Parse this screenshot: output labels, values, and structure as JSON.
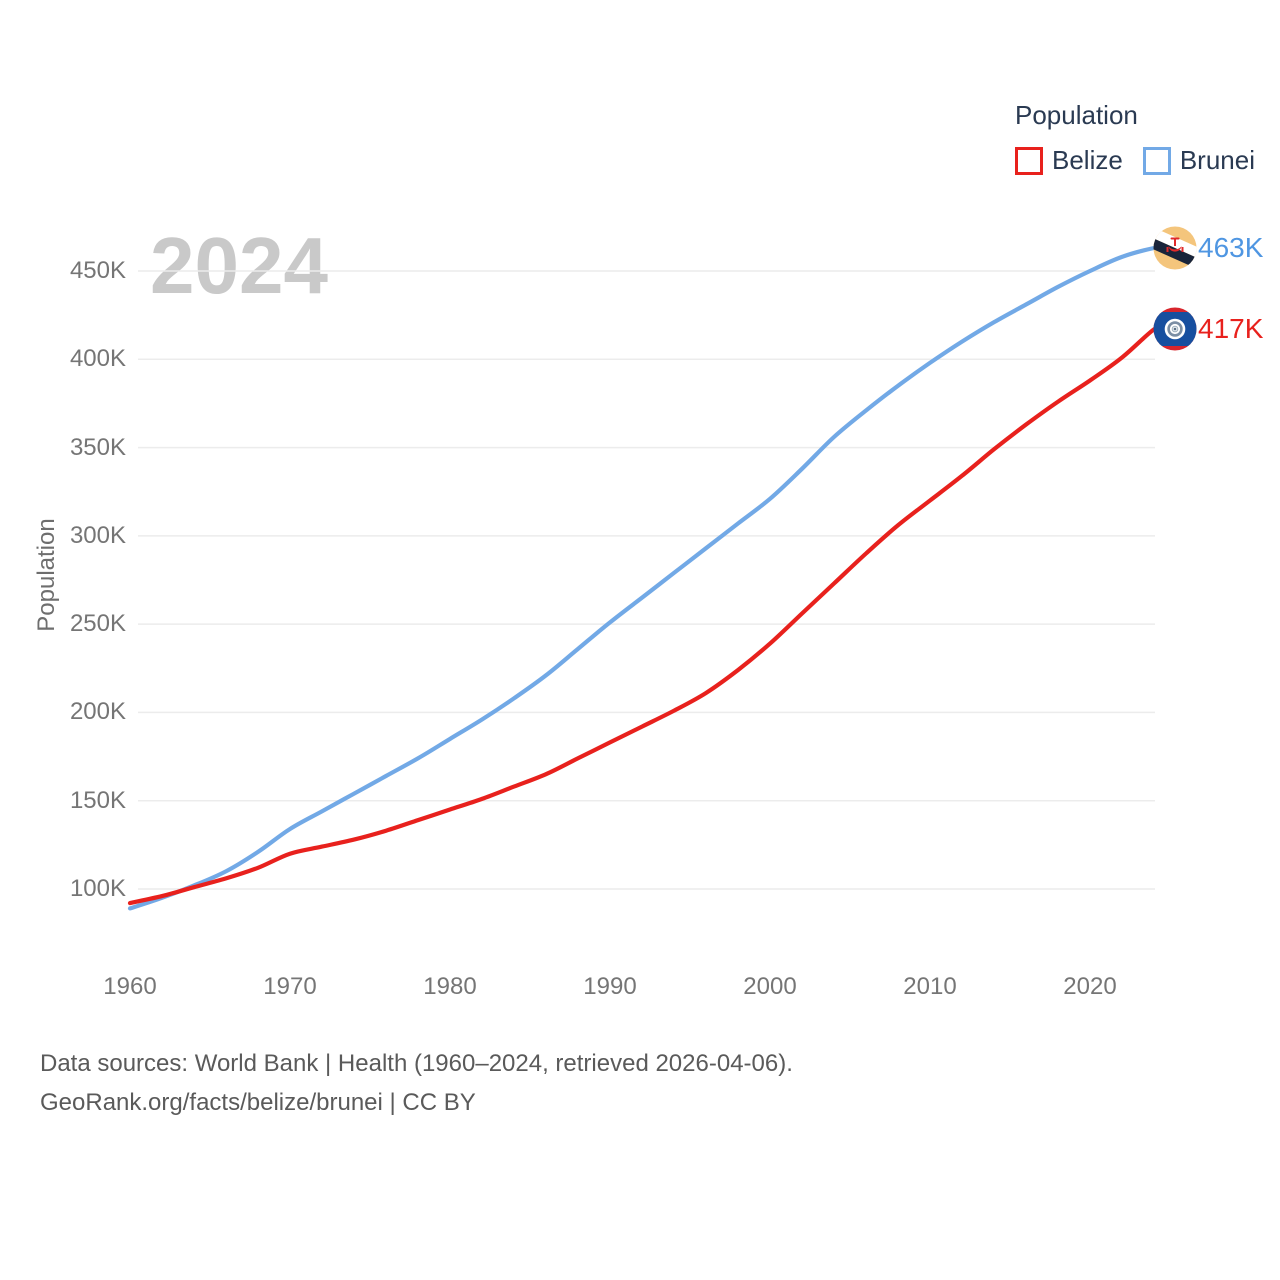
{
  "ui": {
    "legend": {
      "title": "Population",
      "items": [
        {
          "label": "Belize",
          "color": "#e8211d"
        },
        {
          "label": "Brunei",
          "color": "#72a9e6"
        }
      ]
    },
    "watermark": "2024",
    "footer": {
      "line1": "Data sources: World Bank | Health (1960–2024, retrieved 2026-04-06).",
      "line2": "GeoRank.org/facts/belize/brunei | CC BY"
    }
  },
  "chart_data": {
    "type": "line",
    "title": "Population",
    "xlabel": "",
    "ylabel": "Population",
    "units": "people (values in thousands)",
    "x": [
      1960,
      1962,
      1964,
      1966,
      1968,
      1970,
      1972,
      1974,
      1976,
      1978,
      1980,
      1982,
      1984,
      1986,
      1988,
      1990,
      1992,
      1994,
      1996,
      1998,
      2000,
      2002,
      2004,
      2006,
      2008,
      2010,
      2012,
      2014,
      2016,
      2018,
      2020,
      2022,
      2024
    ],
    "series": [
      {
        "name": "Belize",
        "color": "#e8211d",
        "label_color": "#e8211d",
        "end_label": "417K",
        "flag": "belize-flag",
        "values_thousands": [
          92,
          96,
          101,
          106,
          112,
          120,
          124,
          128,
          133,
          139,
          145,
          151,
          158,
          165,
          174,
          183,
          192,
          201,
          211,
          224,
          239,
          256,
          273,
          290,
          306,
          320,
          334,
          349,
          363,
          376,
          388,
          401,
          417
        ]
      },
      {
        "name": "Brunei",
        "color": "#72a9e6",
        "label_color": "#4f96e2",
        "end_label": "463K",
        "flag": "brunei-flag",
        "values_thousands": [
          89,
          95,
          102,
          110,
          121,
          134,
          144,
          154,
          164,
          174,
          185,
          196,
          208,
          221,
          236,
          251,
          265,
          279,
          293,
          307,
          321,
          338,
          356,
          371,
          385,
          398,
          410,
          421,
          431,
          441,
          450,
          458,
          463
        ]
      }
    ],
    "xlim": [
      1960,
      2024
    ],
    "ylim_thousands": [
      85,
      470
    ],
    "y_ticks_thousands": [
      100,
      150,
      200,
      250,
      300,
      350,
      400,
      450
    ],
    "y_tick_labels": [
      "100K",
      "150K",
      "200K",
      "250K",
      "300K",
      "350K",
      "400K",
      "450K"
    ],
    "x_ticks": [
      1960,
      1970,
      1980,
      1990,
      2000,
      2010,
      2020
    ],
    "x_tick_labels": [
      "1960",
      "1970",
      "1980",
      "1990",
      "2000",
      "2010",
      "2020"
    ],
    "grid": true,
    "legend_position": "top-right"
  }
}
